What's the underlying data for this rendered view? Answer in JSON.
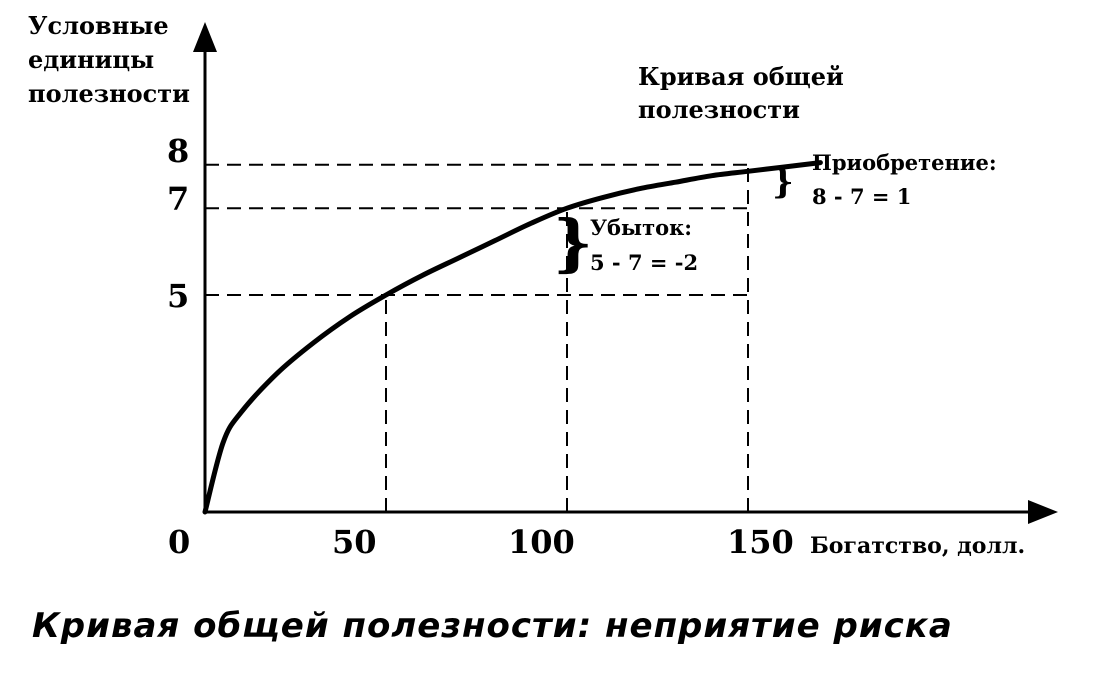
{
  "chart_data": {
    "type": "line",
    "ylabel": [
      "Условные",
      "единицы",
      "полезности"
    ],
    "xlabel": "Богатство, долл.",
    "x_ticks": [
      "0",
      "50",
      "100",
      "150"
    ],
    "y_ticks": [
      "5",
      "7",
      "8"
    ],
    "xlim": [
      0,
      170
    ],
    "ylim": [
      0,
      10
    ],
    "curve_label": [
      "Кривая общей",
      "полезности"
    ],
    "series": [
      {
        "x": [
          0,
          5,
          10,
          20,
          30,
          40,
          50,
          60,
          70,
          80,
          90,
          100,
          110,
          120,
          130,
          140,
          150,
          160,
          170
        ],
        "values": [
          0,
          1.6,
          2.3,
          3.2,
          3.9,
          4.5,
          5.0,
          5.45,
          5.85,
          6.25,
          6.65,
          7.0,
          7.25,
          7.45,
          7.6,
          7.75,
          7.85,
          7.95,
          8.05
        ]
      }
    ],
    "guides": [
      {
        "x": 50,
        "y": 5
      },
      {
        "x": 100,
        "y": 7
      },
      {
        "x": 150,
        "y": 8
      }
    ],
    "annotations": {
      "gain": [
        "Приобретение:",
        "8 - 7 = 1"
      ],
      "loss": [
        "Убыток:",
        "5 - 7 = -2"
      ]
    }
  },
  "caption": "Кривая общей полезности: неприятие риска"
}
